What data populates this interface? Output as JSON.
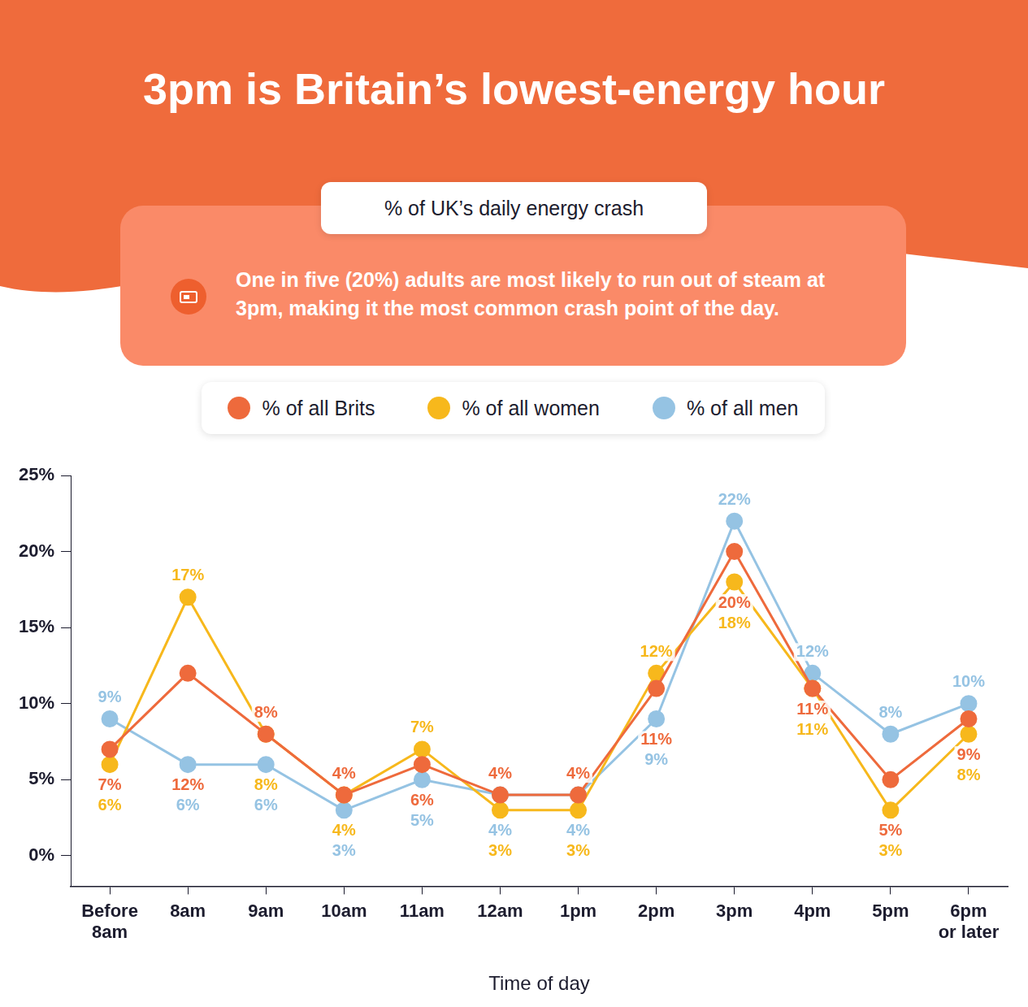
{
  "chart_data": {
    "type": "line",
    "title": "3pm is Britain’s lowest-energy hour",
    "subtitle": "% of UK’s daily energy crash",
    "annotation": "One in five (20%) adults are most likely to run out of steam at 3pm, making it the most common crash point of the day.",
    "x_label": "Time of day",
    "categories": [
      "Before 8am",
      "8am",
      "9am",
      "10am",
      "11am",
      "12am",
      "1pm",
      "2pm",
      "3pm",
      "4pm",
      "5pm",
      "6pm or later"
    ],
    "series": [
      {
        "name": "% of all Brits",
        "color": "#ee6a3c",
        "values": [
          7,
          12,
          8,
          4,
          6,
          4,
          4,
          11,
          20,
          11,
          5,
          9
        ],
        "value_labels": [
          "7%",
          "12%",
          "8%",
          "4%",
          "6%",
          "4%",
          "4%",
          "11%",
          "20%",
          "11%",
          "5%",
          "9%"
        ]
      },
      {
        "name": "% of all women",
        "color": "#f7b81c",
        "values": [
          6,
          17,
          8,
          4,
          7,
          3,
          3,
          12,
          18,
          11,
          3,
          8
        ],
        "value_labels": [
          "6%",
          "17%",
          "8%",
          "4%",
          "7%",
          "3%",
          "3%",
          "12%",
          "18%",
          "11%",
          "3%",
          "8%"
        ]
      },
      {
        "name": "% of all men",
        "color": "#95c3e3",
        "values": [
          9,
          6,
          6,
          3,
          5,
          4,
          4,
          9,
          22,
          12,
          8,
          10
        ],
        "value_labels": [
          "9%",
          "6%",
          "6%",
          "3%",
          "5%",
          "4%",
          "4%",
          "9%",
          "22%",
          "12%",
          "8%",
          "10%"
        ]
      }
    ],
    "ylim": [
      -2,
      25
    ],
    "yticks": [
      {
        "value": 0,
        "label": "0%"
      },
      {
        "value": 5,
        "label": "5%"
      },
      {
        "value": 10,
        "label": "10%"
      },
      {
        "value": 15,
        "label": "15%"
      },
      {
        "value": 20,
        "label": "20%"
      },
      {
        "value": 25,
        "label": "25%"
      }
    ],
    "grid": false,
    "legend": "top",
    "data_labels": true,
    "marker": "circle",
    "line_style": "solid"
  }
}
